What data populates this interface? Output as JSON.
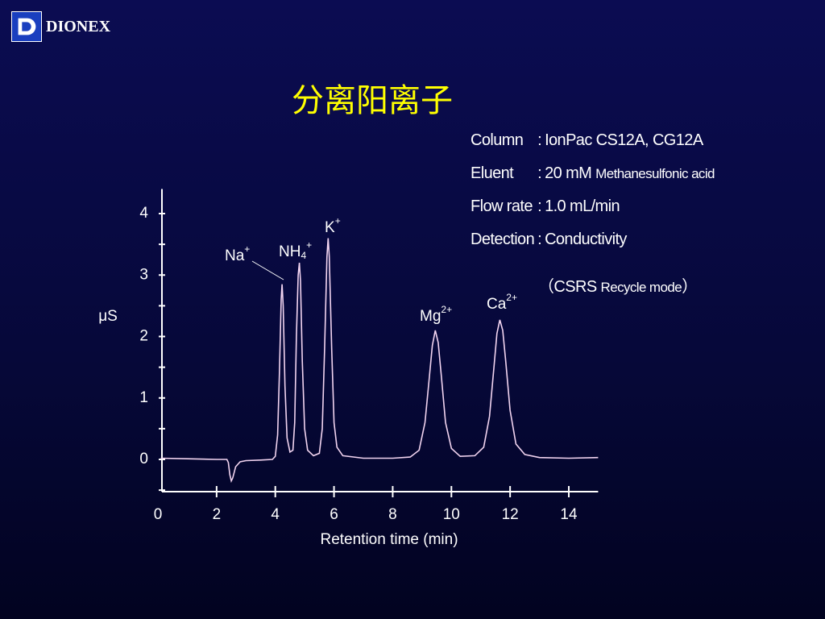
{
  "logo": {
    "text": "DIONEX"
  },
  "title": "分离阳离子",
  "info": [
    {
      "label": "Column",
      "sep": ":",
      "value": "IonPac CS12A, CG12A"
    },
    {
      "label": "Eluent",
      "sep": ":",
      "value": "20 mM",
      "detail": "Methanesulfonic acid"
    },
    {
      "label": "Flow rate",
      "sep": ":",
      "value": "1.0 mL/min"
    },
    {
      "label": "Detection",
      "sep": ":",
      "value": "Conductivity"
    }
  ],
  "info_note": {
    "open": "（CSRS",
    "small": "Recycle mode",
    "close": "）"
  },
  "chart_data": {
    "type": "line",
    "color": "#f2d4f0",
    "x_label": "Retention time (min)",
    "y_label": "μS",
    "xlim": [
      0,
      15
    ],
    "ylim": [
      -0.5,
      4.4
    ],
    "xticks": [
      0,
      2,
      4,
      6,
      8,
      10,
      12,
      14
    ],
    "yticks": [
      0,
      1,
      2,
      3,
      4
    ],
    "y_minor_ticks": [
      -0.5,
      0.5,
      1.5,
      2.5,
      3.5
    ],
    "x": [
      0.1,
      1,
      2,
      2.35,
      2.4,
      2.45,
      2.5,
      2.55,
      2.65,
      2.8,
      3,
      3.5,
      3.9,
      4.0,
      4.08,
      4.14,
      4.2,
      4.23,
      4.27,
      4.33,
      4.4,
      4.5,
      4.6,
      4.66,
      4.72,
      4.78,
      4.82,
      4.86,
      4.92,
      5.0,
      5.1,
      5.3,
      5.5,
      5.6,
      5.68,
      5.76,
      5.8,
      5.84,
      5.92,
      6.0,
      6.1,
      6.3,
      7,
      8,
      8.6,
      8.9,
      9.1,
      9.25,
      9.35,
      9.45,
      9.55,
      9.65,
      9.8,
      10,
      10.3,
      10.8,
      11.1,
      11.3,
      11.45,
      11.55,
      11.65,
      11.75,
      11.85,
      12.0,
      12.2,
      12.5,
      13,
      14,
      15
    ],
    "values": [
      0.02,
      0.01,
      0.0,
      0.0,
      -0.05,
      -0.25,
      -0.35,
      -0.3,
      -0.12,
      -0.04,
      -0.02,
      -0.01,
      0.0,
      0.05,
      0.4,
      1.4,
      2.6,
      2.85,
      2.5,
      1.2,
      0.35,
      0.12,
      0.15,
      0.6,
      2.0,
      3.0,
      3.2,
      2.9,
      1.6,
      0.5,
      0.15,
      0.06,
      0.1,
      0.5,
      1.8,
      3.3,
      3.6,
      3.3,
      1.8,
      0.6,
      0.2,
      0.06,
      0.02,
      0.02,
      0.04,
      0.15,
      0.6,
      1.35,
      1.85,
      2.1,
      1.9,
      1.4,
      0.6,
      0.18,
      0.05,
      0.06,
      0.2,
      0.7,
      1.5,
      2.05,
      2.27,
      2.1,
      1.6,
      0.8,
      0.25,
      0.08,
      0.03,
      0.02,
      0.03
    ],
    "annotations": [
      {
        "base": "Na",
        "sup": "+"
      },
      {
        "base": "NH",
        "sub": "4",
        "sup": "+"
      },
      {
        "base": "K",
        "sup": "+"
      },
      {
        "base": "Mg",
        "sup": "2+"
      },
      {
        "base": "Ca",
        "sup": "2+"
      }
    ]
  }
}
